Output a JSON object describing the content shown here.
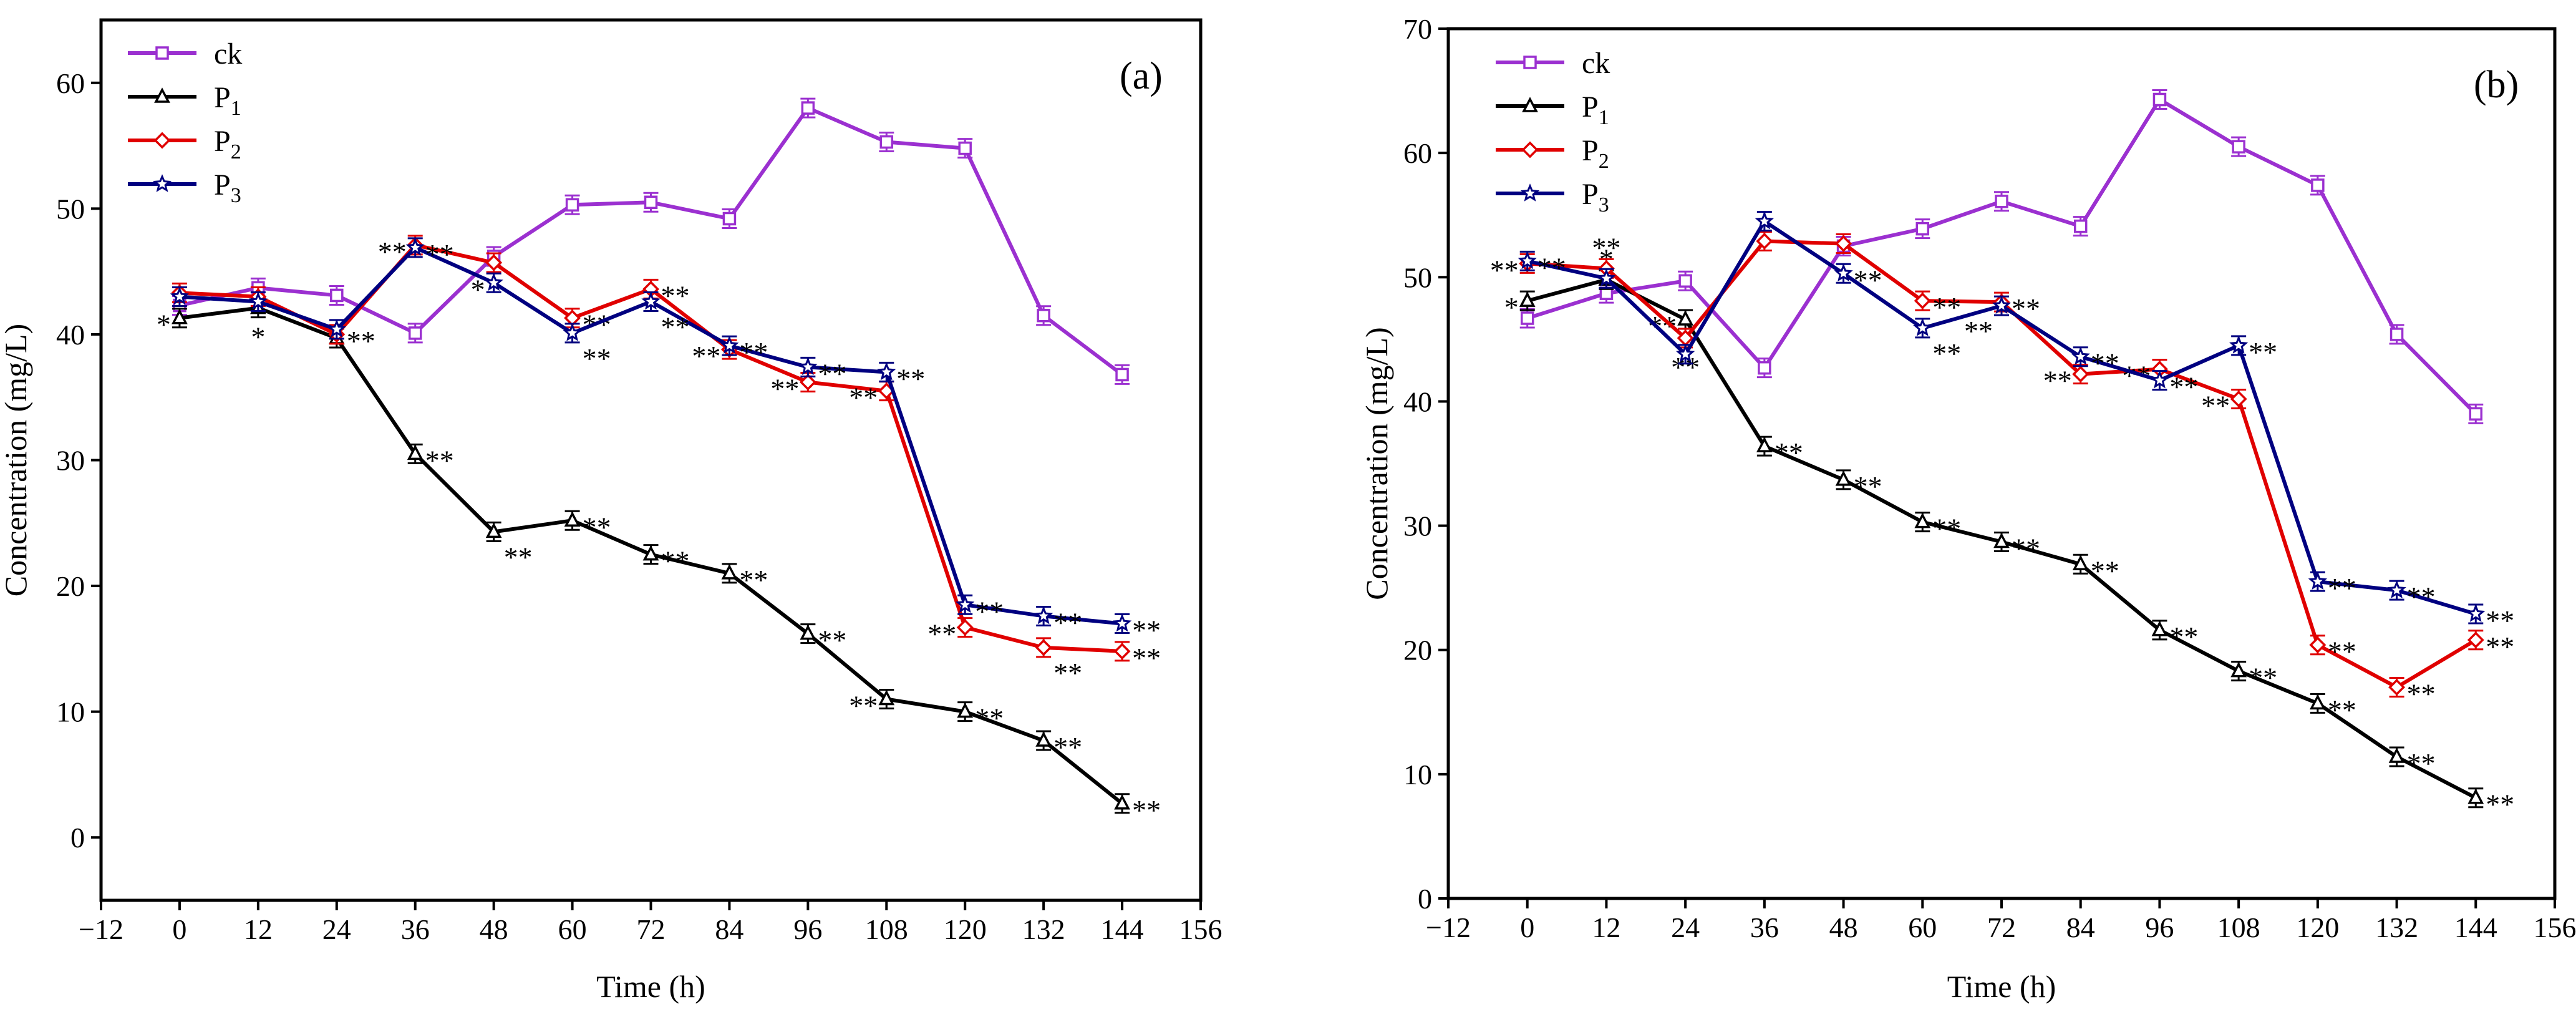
{
  "chart_data": [
    {
      "panel_label": "(a)",
      "type": "line",
      "xlabel": "Time  (h)",
      "ylabel": "Concentration (mg/L)",
      "xlim": [
        -12,
        156
      ],
      "ylim": [
        -5,
        65
      ],
      "xticks": [
        -12,
        0,
        12,
        24,
        36,
        48,
        60,
        72,
        84,
        96,
        108,
        120,
        132,
        144,
        156
      ],
      "yticks": [
        0,
        10,
        20,
        30,
        40,
        50,
        60
      ],
      "x": [
        0,
        12,
        24,
        36,
        48,
        60,
        72,
        84,
        96,
        108,
        120,
        132,
        144
      ],
      "legend_position": "top-left",
      "series": [
        {
          "name": "ck",
          "sub": "",
          "color": "#9b30d0",
          "marker": "square",
          "values": [
            42.3,
            43.7,
            43.1,
            40.1,
            46.2,
            50.3,
            50.5,
            49.2,
            58.0,
            55.3,
            54.8,
            41.5,
            36.8
          ],
          "sig": [
            "",
            "",
            "",
            "",
            "",
            "",
            "",
            "",
            "",
            "",
            "",
            "",
            ""
          ],
          "sig_side": [
            "",
            "",
            "",
            "",
            "",
            "",
            "",
            "",
            "",
            "",
            "",
            "",
            ""
          ]
        },
        {
          "name": "P",
          "sub": "1",
          "color": "#000000",
          "marker": "triangle",
          "values": [
            41.3,
            42.1,
            39.7,
            30.5,
            24.3,
            25.2,
            22.5,
            21.0,
            16.2,
            11.0,
            10.0,
            7.7,
            2.7
          ],
          "sig": [
            "*",
            "*",
            "",
            "**",
            "**",
            "**",
            "**",
            "**",
            "**",
            "**",
            "**",
            "**",
            "**"
          ],
          "sig_side": [
            "left",
            "below",
            "",
            "right",
            "right-low",
            "right",
            "right",
            "right",
            "right",
            "left",
            "right",
            "right",
            "right"
          ]
        },
        {
          "name": "P",
          "sub": "2",
          "color": "#e00000",
          "marker": "diamond",
          "values": [
            43.3,
            43.0,
            40.0,
            47.1,
            45.7,
            41.3,
            43.6,
            38.8,
            36.2,
            35.5,
            16.7,
            15.1,
            14.8
          ],
          "sig": [
            "",
            "",
            "**",
            "**",
            "",
            "**",
            "**",
            "**",
            "**",
            "**",
            "**",
            "**",
            "**"
          ],
          "sig_side": [
            "",
            "",
            "right",
            "left",
            "",
            "right",
            "right",
            "left",
            "left",
            "left",
            "left",
            "right-low",
            "right"
          ]
        },
        {
          "name": "P",
          "sub": "3",
          "color": "#000080",
          "marker": "star",
          "values": [
            43.0,
            42.6,
            40.4,
            46.9,
            44.1,
            40.1,
            42.6,
            39.1,
            37.4,
            37.0,
            18.5,
            17.6,
            17.0
          ],
          "sig": [
            "",
            "",
            "",
            "**",
            "*",
            "**",
            "**",
            "**",
            "**",
            "**",
            "**",
            "**",
            "**"
          ],
          "sig_side": [
            "",
            "",
            "",
            "right",
            "left",
            "right-low",
            "right-low",
            "right",
            "right",
            "right",
            "right",
            "right",
            "right"
          ]
        }
      ]
    },
    {
      "panel_label": "(b)",
      "type": "line",
      "xlabel": "Time  (h)",
      "ylabel": "Concentration (mg/L)",
      "xlim": [
        -12,
        156
      ],
      "ylim": [
        0,
        70
      ],
      "xticks": [
        -12,
        0,
        12,
        24,
        36,
        48,
        60,
        72,
        84,
        96,
        108,
        120,
        132,
        144,
        156
      ],
      "yticks": [
        0,
        10,
        20,
        30,
        40,
        50,
        60,
        70
      ],
      "x": [
        0,
        12,
        24,
        36,
        48,
        60,
        72,
        84,
        96,
        108,
        120,
        132,
        144
      ],
      "legend_position": "top-left",
      "series": [
        {
          "name": "ck",
          "sub": "",
          "color": "#9b30d0",
          "marker": "square",
          "values": [
            46.7,
            48.7,
            49.7,
            42.7,
            52.5,
            53.9,
            56.1,
            54.1,
            64.3,
            60.5,
            57.4,
            45.4,
            39.0
          ],
          "sig": [
            "",
            "",
            "",
            "",
            "",
            "",
            "",
            "",
            "",
            "",
            "",
            "",
            ""
          ],
          "sig_side": [
            "",
            "",
            "",
            "",
            "",
            "",
            "",
            "",
            "",
            "",
            "",
            "",
            ""
          ]
        },
        {
          "name": "P",
          "sub": "1",
          "color": "#000000",
          "marker": "triangle",
          "values": [
            48.1,
            49.8,
            46.6,
            36.4,
            33.7,
            30.3,
            28.7,
            26.9,
            21.6,
            18.3,
            15.7,
            11.4,
            8.1
          ],
          "sig": [
            "*",
            "*",
            "**",
            "**",
            "**",
            "**",
            "**",
            "**",
            "**",
            "**",
            "**",
            "**",
            "**"
          ],
          "sig_side": [
            "left",
            "above",
            "left",
            "right",
            "right",
            "right",
            "right",
            "right",
            "right",
            "right",
            "right",
            "right",
            "right"
          ]
        },
        {
          "name": "P",
          "sub": "2",
          "color": "#e00000",
          "marker": "diamond",
          "values": [
            51.1,
            50.7,
            45.1,
            52.9,
            52.7,
            48.1,
            48.0,
            42.2,
            42.6,
            40.2,
            20.4,
            17.0,
            20.8
          ],
          "sig": [
            "**",
            "**",
            "**",
            "",
            "",
            "**",
            "**",
            "**",
            "**",
            "**",
            "**",
            "**",
            "**"
          ],
          "sig_side": [
            "left",
            "above",
            "below",
            "",
            "",
            "right",
            "right",
            "left",
            "left",
            "left",
            "right",
            "right",
            "right"
          ]
        },
        {
          "name": "P",
          "sub": "3",
          "color": "#000080",
          "marker": "star",
          "values": [
            51.3,
            49.9,
            43.8,
            54.5,
            50.3,
            45.9,
            47.7,
            43.6,
            41.7,
            44.5,
            25.5,
            24.8,
            22.9
          ],
          "sig": [
            "**",
            "",
            "",
            "",
            "**",
            "**",
            "**",
            "**",
            "**",
            "**",
            "**",
            "**",
            "**"
          ],
          "sig_side": [
            "right",
            "",
            "",
            "",
            "right",
            "right-low",
            "left-low",
            "right",
            "right",
            "right",
            "right",
            "right",
            "right"
          ]
        }
      ]
    }
  ]
}
